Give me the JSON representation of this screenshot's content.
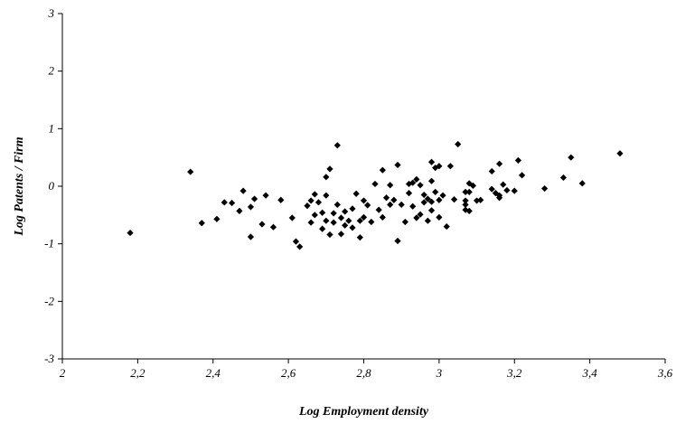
{
  "chart_data": {
    "type": "scatter",
    "title": "",
    "xlabel": "Log Employment density",
    "ylabel": "Log Patents / Firm",
    "xlim": [
      2,
      3.6
    ],
    "ylim": [
      -3,
      3
    ],
    "x_ticks": [
      2,
      2.2,
      2.4,
      2.6,
      2.8,
      3,
      3.2,
      3.4,
      3.6
    ],
    "x_tick_labels": [
      "2",
      "2,2",
      "2,4",
      "2,6",
      "2,8",
      "3",
      "3,2",
      "3,4",
      "3,6"
    ],
    "y_ticks": [
      -3,
      -2,
      -1,
      0,
      1,
      2,
      3
    ],
    "y_tick_labels": [
      "-3",
      "-2",
      "-1",
      "0",
      "1",
      "2",
      "3"
    ],
    "grid": false,
    "legend": "none",
    "marker": "diamond",
    "marker_color": "#000000",
    "points": [
      [
        2.18,
        -0.81
      ],
      [
        2.34,
        0.25
      ],
      [
        2.37,
        -0.64
      ],
      [
        2.41,
        -0.57
      ],
      [
        2.43,
        -0.28
      ],
      [
        2.45,
        -0.29
      ],
      [
        2.47,
        -0.43
      ],
      [
        2.48,
        -0.08
      ],
      [
        2.5,
        -0.36
      ],
      [
        2.5,
        -0.88
      ],
      [
        2.51,
        -0.22
      ],
      [
        2.53,
        -0.66
      ],
      [
        2.54,
        -0.16
      ],
      [
        2.56,
        -0.71
      ],
      [
        2.58,
        -0.24
      ],
      [
        2.61,
        -0.55
      ],
      [
        2.62,
        -0.96
      ],
      [
        2.63,
        -1.05
      ],
      [
        2.65,
        -0.34
      ],
      [
        2.66,
        -0.25
      ],
      [
        2.66,
        -0.63
      ],
      [
        2.67,
        -0.14
      ],
      [
        2.67,
        -0.5
      ],
      [
        2.68,
        -0.28
      ],
      [
        2.69,
        -0.46
      ],
      [
        2.69,
        -0.74
      ],
      [
        2.7,
        -0.6
      ],
      [
        2.7,
        0.16
      ],
      [
        2.7,
        -0.16
      ],
      [
        2.71,
        -0.84
      ],
      [
        2.71,
        0.3
      ],
      [
        2.72,
        -0.47
      ],
      [
        2.72,
        -0.63
      ],
      [
        2.73,
        0.71
      ],
      [
        2.73,
        -0.32
      ],
      [
        2.74,
        -0.83
      ],
      [
        2.74,
        -0.55
      ],
      [
        2.75,
        -0.44
      ],
      [
        2.75,
        -0.68
      ],
      [
        2.76,
        -0.6
      ],
      [
        2.77,
        -0.72
      ],
      [
        2.77,
        -0.39
      ],
      [
        2.78,
        -0.13
      ],
      [
        2.79,
        -0.6
      ],
      [
        2.79,
        -0.89
      ],
      [
        2.8,
        -0.25
      ],
      [
        2.8,
        -0.54
      ],
      [
        2.81,
        -0.33
      ],
      [
        2.82,
        -0.62
      ],
      [
        2.83,
        0.04
      ],
      [
        2.84,
        -0.41
      ],
      [
        2.85,
        0.28
      ],
      [
        2.85,
        -0.54
      ],
      [
        2.86,
        -0.2
      ],
      [
        2.87,
        -0.32
      ],
      [
        2.87,
        0.02
      ],
      [
        2.88,
        -0.24
      ],
      [
        2.89,
        0.37
      ],
      [
        2.89,
        -0.95
      ],
      [
        2.9,
        -0.32
      ],
      [
        2.91,
        -0.62
      ],
      [
        2.92,
        0.04
      ],
      [
        2.92,
        -0.12
      ],
      [
        2.93,
        0.06
      ],
      [
        2.93,
        -0.35
      ],
      [
        2.94,
        0.12
      ],
      [
        2.94,
        -0.55
      ],
      [
        2.95,
        -0.49
      ],
      [
        2.95,
        0.02
      ],
      [
        2.96,
        -0.15
      ],
      [
        2.96,
        -0.28
      ],
      [
        2.97,
        -0.22
      ],
      [
        2.97,
        -0.6
      ],
      [
        2.98,
        -0.27
      ],
      [
        2.98,
        0.09
      ],
      [
        2.98,
        -0.42
      ],
      [
        2.98,
        0.42
      ],
      [
        2.99,
        0.32
      ],
      [
        2.99,
        -0.1
      ],
      [
        3.0,
        0.35
      ],
      [
        3.0,
        -0.54
      ],
      [
        3.0,
        -0.24
      ],
      [
        3.01,
        -0.16
      ],
      [
        3.02,
        -0.7
      ],
      [
        3.03,
        0.35
      ],
      [
        3.04,
        -0.23
      ],
      [
        3.05,
        0.73
      ],
      [
        3.07,
        -0.1
      ],
      [
        3.07,
        -0.32
      ],
      [
        3.07,
        -0.41
      ],
      [
        3.07,
        -0.25
      ],
      [
        3.08,
        0.05
      ],
      [
        3.08,
        -0.1
      ],
      [
        3.08,
        -0.43
      ],
      [
        3.09,
        0.01
      ],
      [
        3.1,
        -0.25
      ],
      [
        3.11,
        -0.24
      ],
      [
        3.14,
        -0.05
      ],
      [
        3.14,
        0.26
      ],
      [
        3.15,
        -0.12
      ],
      [
        3.16,
        0.39
      ],
      [
        3.16,
        -0.2
      ],
      [
        3.16,
        -0.16
      ],
      [
        3.17,
        0.03
      ],
      [
        3.18,
        -0.07
      ],
      [
        3.2,
        -0.08
      ],
      [
        3.21,
        0.45
      ],
      [
        3.22,
        0.19
      ],
      [
        3.28,
        -0.04
      ],
      [
        3.33,
        0.15
      ],
      [
        3.35,
        0.5
      ],
      [
        3.38,
        0.05
      ],
      [
        3.48,
        0.57
      ]
    ]
  }
}
